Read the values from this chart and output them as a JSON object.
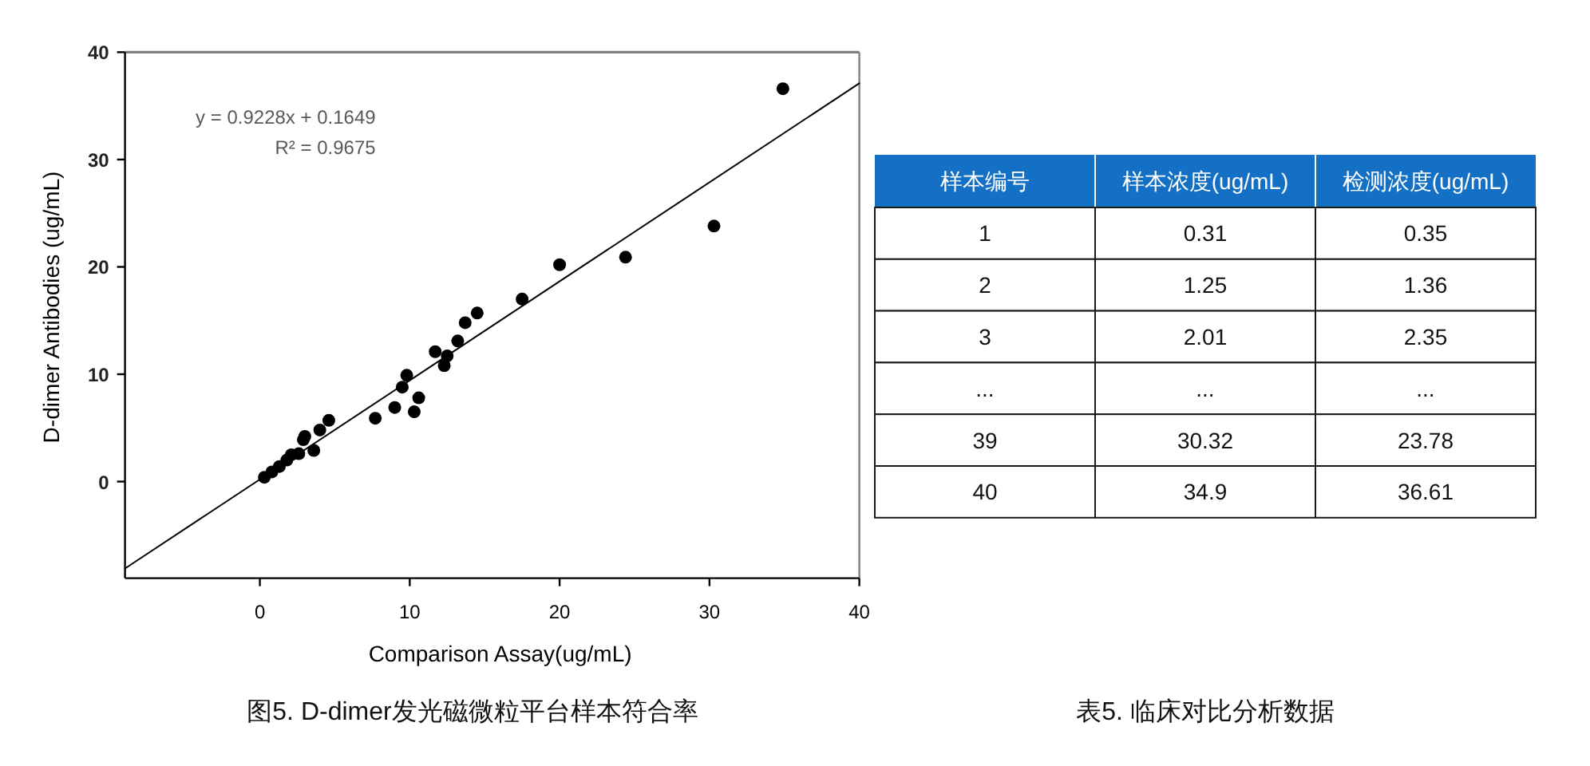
{
  "chart_data": [
    {
      "type": "scatter",
      "title": "图5. D-dimer发光磁微粒平台样本符合率",
      "xlabel": "Comparison Assay(ug/mL)",
      "ylabel": "D-dimer Antibodies (ug/mL)",
      "xlim": [
        -9,
        40
      ],
      "ylim": [
        -9,
        40
      ],
      "xticks": [
        0,
        10,
        20,
        30,
        40
      ],
      "yticks": [
        0,
        10,
        20,
        30,
        40
      ],
      "marker": "circle",
      "annotations": [
        "y = 0.9228x + 0.1649",
        "R² = 0.9675"
      ],
      "series": [
        {
          "type": "scatter",
          "color": "#000000",
          "x": [
            0.3,
            0.8,
            1.3,
            1.8,
            2.1,
            2.6,
            2.9,
            3.0,
            3.6,
            4.0,
            4.6,
            7.7,
            9.0,
            9.5,
            9.8,
            10.3,
            10.6,
            11.7,
            12.3,
            12.5,
            13.2,
            13.7,
            14.5,
            17.5,
            20.0,
            24.4,
            30.3,
            34.9
          ],
          "values": [
            0.4,
            0.9,
            1.4,
            2.0,
            2.5,
            2.6,
            3.9,
            4.2,
            2.9,
            4.8,
            5.7,
            5.9,
            6.9,
            8.8,
            9.9,
            6.5,
            7.8,
            12.1,
            10.8,
            11.7,
            13.1,
            14.8,
            15.7,
            17.0,
            20.2,
            20.9,
            23.8,
            36.6
          ]
        },
        {
          "type": "line",
          "color": "#000000",
          "marker": "none",
          "x": [
            -9,
            40
          ],
          "values": [
            -8.1,
            37.1
          ]
        }
      ]
    },
    {
      "type": "other",
      "title": "表5. 临床对比分析数据",
      "color": "#1470c4",
      "categories": [
        "样本编号",
        "样本浓度(ug/mL)",
        "检测浓度(ug/mL)"
      ],
      "cell_labels": [
        [
          "1",
          "0.31",
          "0.35"
        ],
        [
          "2",
          "1.25",
          "1.36"
        ],
        [
          "3",
          "2.01",
          "2.35"
        ],
        [
          "...",
          "...",
          "..."
        ],
        [
          "39",
          "30.32",
          "23.78"
        ],
        [
          "40",
          "34.9",
          "36.61"
        ]
      ]
    }
  ]
}
